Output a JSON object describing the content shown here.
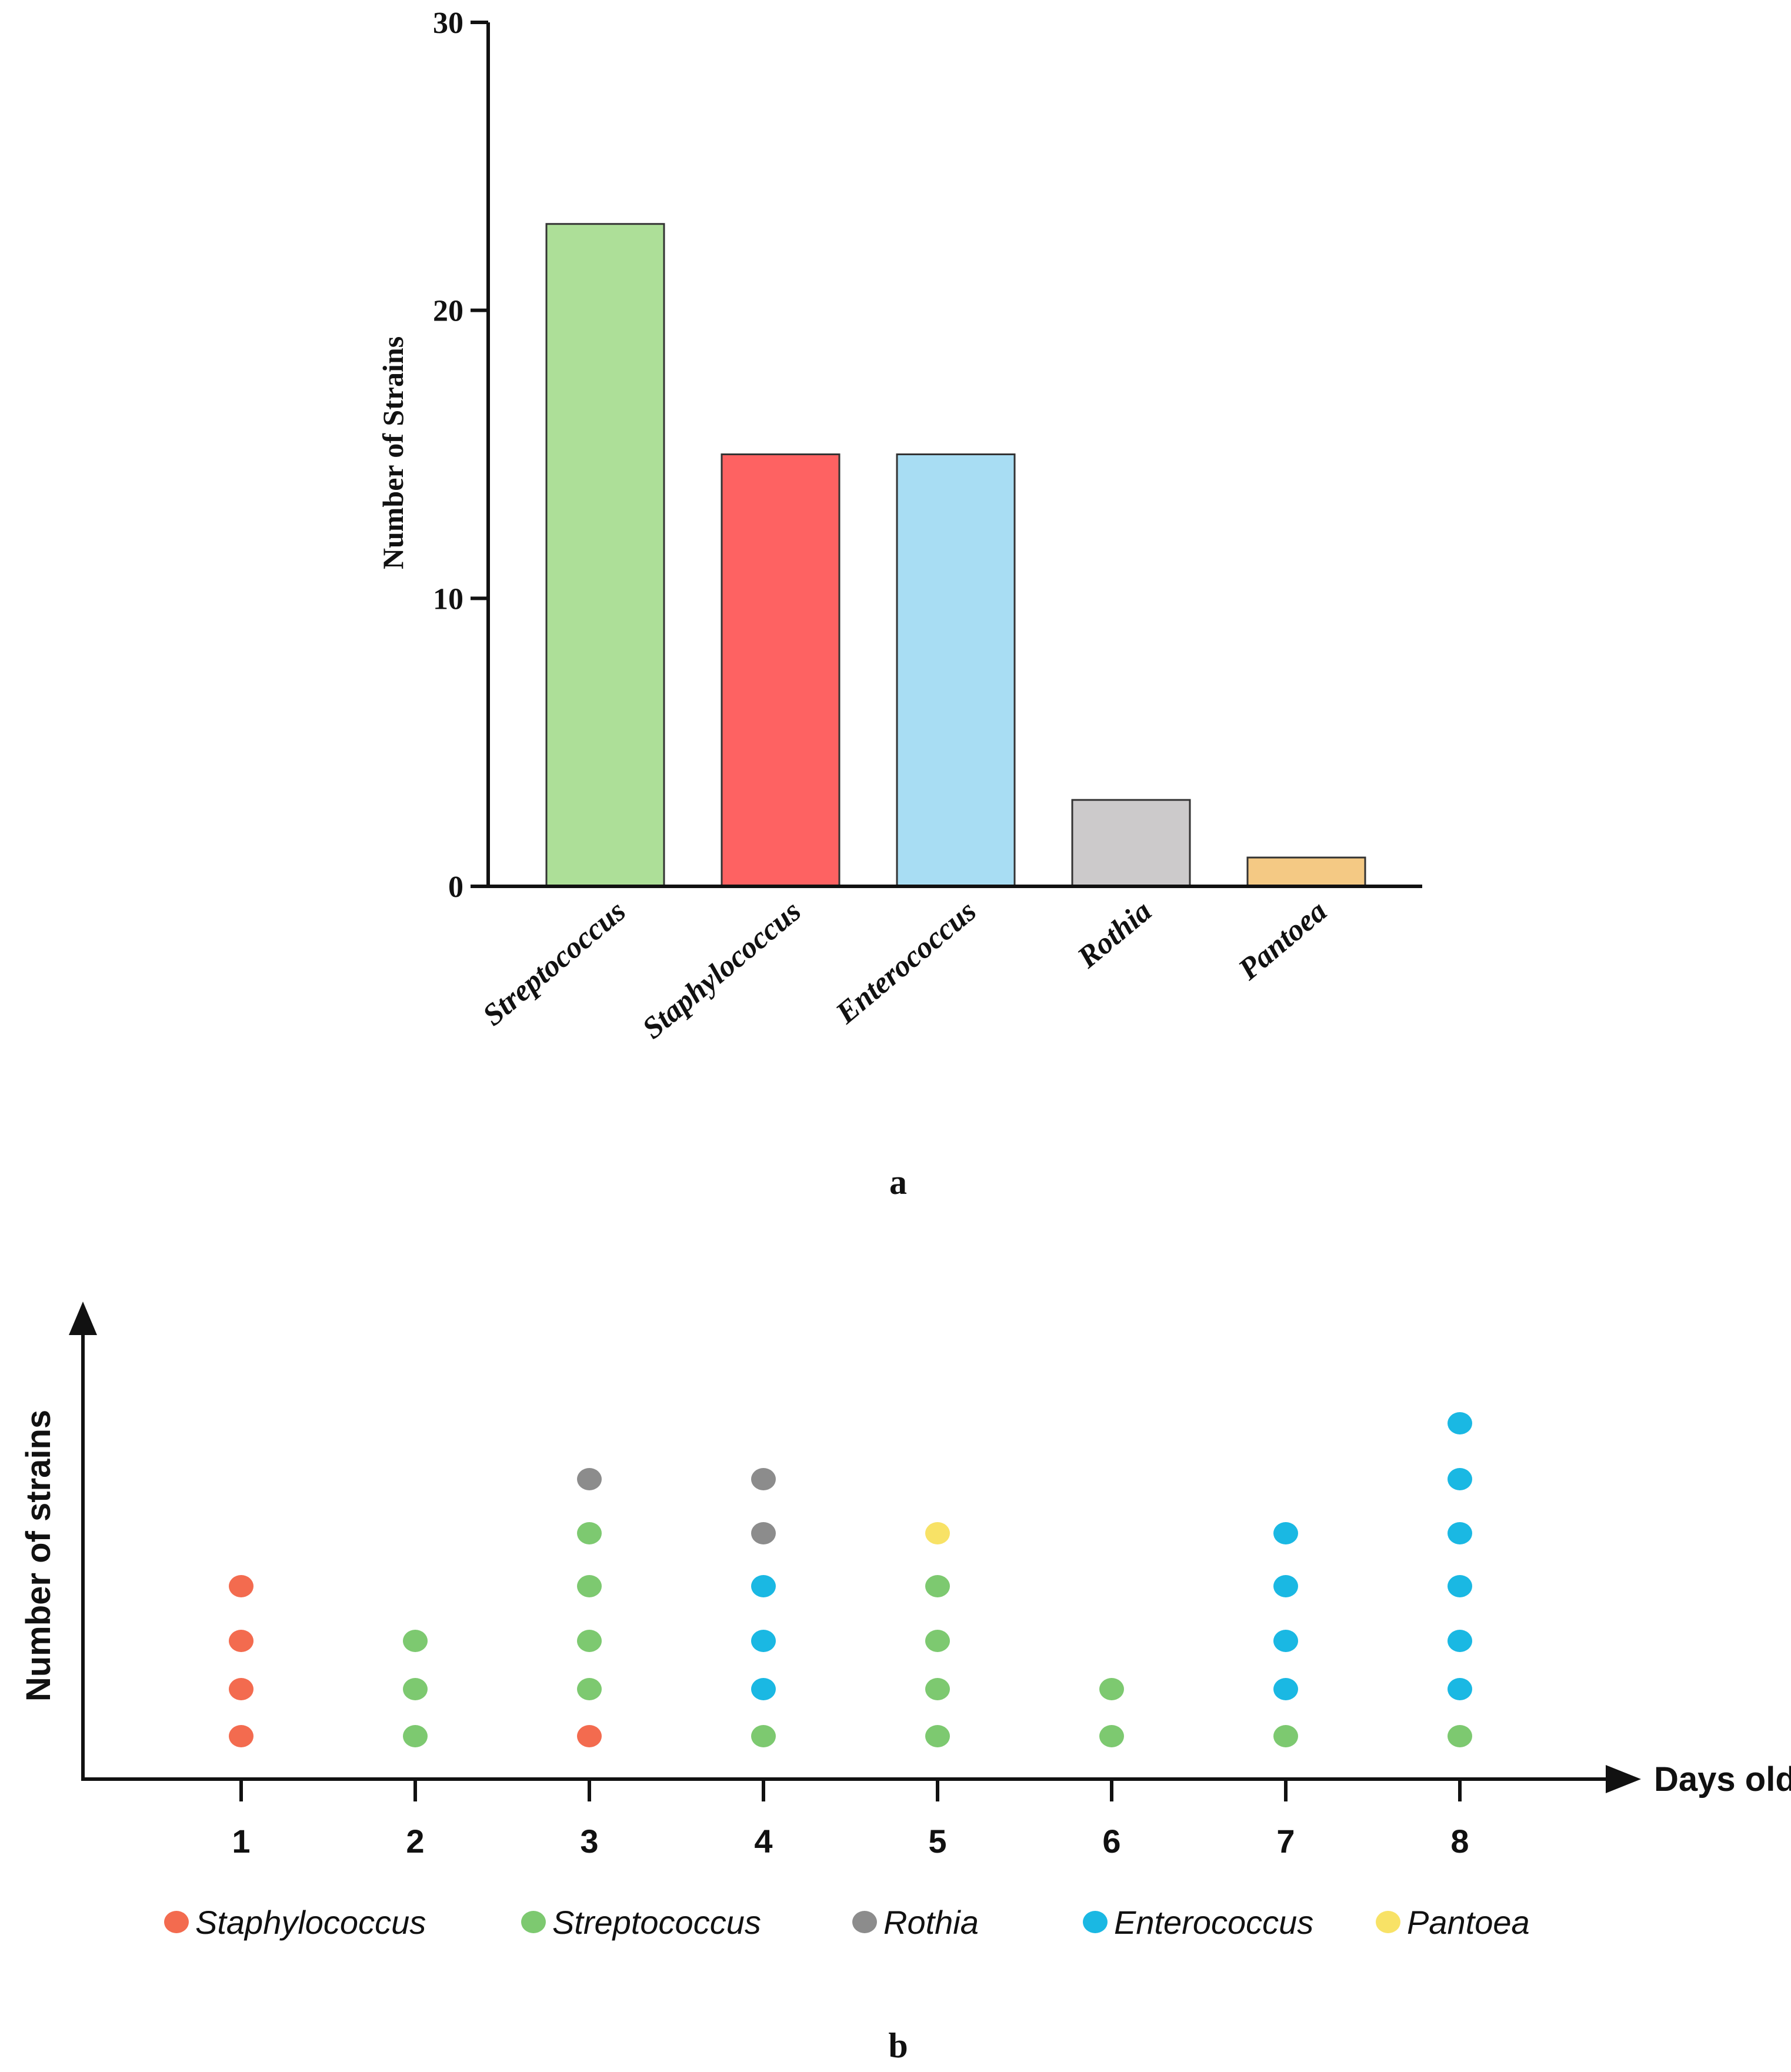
{
  "colors": {
    "Streptococcus": "#addf98",
    "Staphylococcus": "#fe6262",
    "Enterococcus": "#a8ddf3",
    "Rothia": "#cccacb",
    "Pantoea": "#f4c984",
    "dot_Staphylococcus": "#f36b4f",
    "dot_Streptococcus": "#7dc970",
    "dot_Rothia": "#8c8c8c",
    "dot_Enterococcus": "#1ab8e3",
    "dot_Pantoea": "#f8e266"
  },
  "chart_data": [
    {
      "type": "bar",
      "panel_label": "a",
      "title": "",
      "xlabel": "",
      "ylabel": "Number of Strains",
      "ylim": [
        0,
        30
      ],
      "yticks": [
        0,
        10,
        20,
        30
      ],
      "categories": [
        "Streptococcus",
        "Staphylococcus",
        "Enterococcus",
        "Rothia",
        "Pantoea"
      ],
      "values": [
        23,
        15,
        15,
        3,
        1
      ]
    },
    {
      "type": "scatter",
      "panel_label": "b",
      "xlabel": "Days old",
      "ylabel": "Number of strains",
      "x": [
        1,
        2,
        3,
        4,
        5,
        6,
        7,
        8
      ],
      "stacks": [
        [
          "Staphylococcus",
          "Staphylococcus",
          "Staphylococcus",
          "Staphylococcus"
        ],
        [
          "Streptococcus",
          "Streptococcus",
          "Streptococcus"
        ],
        [
          "Staphylococcus",
          "Streptococcus",
          "Streptococcus",
          "Streptococcus",
          "Streptococcus",
          "Rothia"
        ],
        [
          "Streptococcus",
          "Enterococcus",
          "Enterococcus",
          "Enterococcus",
          "Rothia",
          "Rothia"
        ],
        [
          "Streptococcus",
          "Streptococcus",
          "Streptococcus",
          "Streptococcus",
          "Pantoea"
        ],
        [
          "Streptococcus",
          "Streptococcus"
        ],
        [
          "Streptococcus",
          "Enterococcus",
          "Enterococcus",
          "Enterococcus",
          "Enterococcus"
        ],
        [
          "Streptococcus",
          "Enterococcus",
          "Enterococcus",
          "Enterococcus",
          "Enterococcus",
          "Enterococcus",
          "Enterococcus"
        ]
      ],
      "legend": [
        "Staphylococcus",
        "Streptococcus",
        "Rothia",
        "Enterococcus",
        "Pantoea"
      ]
    }
  ]
}
